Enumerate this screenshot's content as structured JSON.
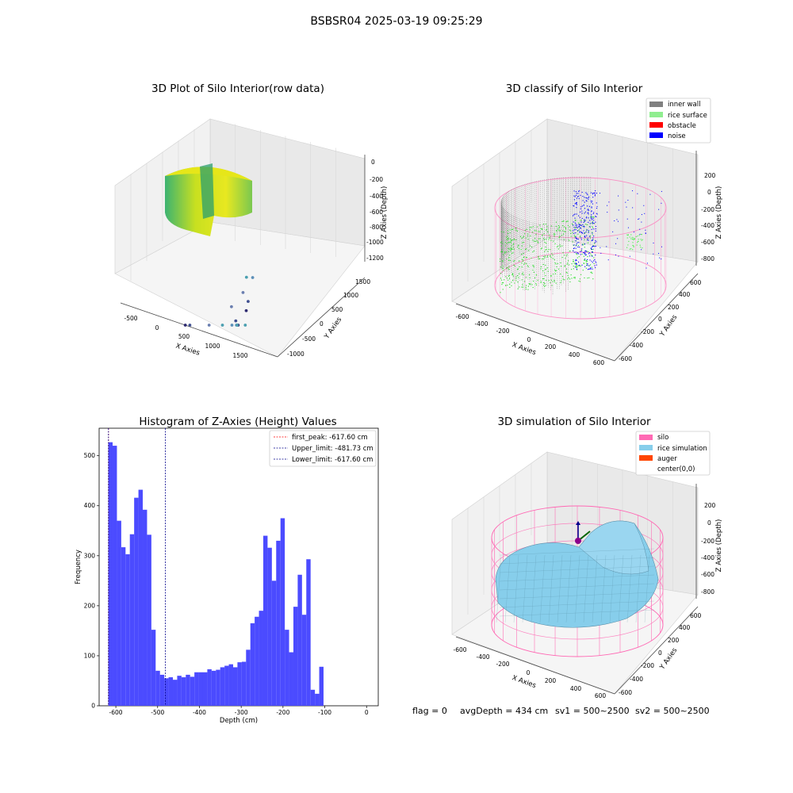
{
  "figure": {
    "suptitle": "BSBSR04 2025-03-19 09:25:29",
    "status": {
      "flag": "flag = 0",
      "avg_depth": "avgDepth = 434 cm",
      "sv1": "sv1 = 500~2500",
      "sv2": "sv2 = 500~2500"
    }
  },
  "colors": {
    "inner_wall": "#808080",
    "rice_surface": "#90ee90",
    "obstacle": "#ff0000",
    "noise": "#0000ff",
    "silo": "#ff69b4",
    "rice_simulation": "#87ceeb",
    "auger": "#ff4500",
    "histogram": "#4b4bff",
    "first_peak_line": "#ff0000",
    "limit_line": "#00008b",
    "pane_gray": "#f2f2f2"
  },
  "chart_data": [
    {
      "type": "scatter",
      "title": "3D Plot of Silo Interior(row data)",
      "xlabel": "X Axies",
      "ylabel": "Y Axies",
      "zlabel": "Z Axies (Depth)",
      "xticks": [
        "-500",
        "0",
        "500",
        "1000",
        "1500"
      ],
      "yticks": [
        "-1000",
        "-500",
        "0",
        "500",
        "1000",
        "1500"
      ],
      "zticks": [
        "0",
        "-200",
        "-400",
        "-600",
        "-800",
        "-1000",
        "-1200"
      ],
      "outlier_points": [
        {
          "x": 1300,
          "y": 600,
          "z": -600
        },
        {
          "x": 1350,
          "y": 700,
          "z": -620
        },
        {
          "x": 1200,
          "y": 650,
          "z": -800
        },
        {
          "x": 1400,
          "y": 500,
          "z": -820
        },
        {
          "x": 1500,
          "y": 300,
          "z": -850
        },
        {
          "x": 1550,
          "y": 200,
          "z": -1000
        },
        {
          "x": 1450,
          "y": 100,
          "z": -1050
        },
        {
          "x": 1150,
          "y": 400,
          "z": -900
        },
        {
          "x": 1300,
          "y": 300,
          "z": -1000
        },
        {
          "x": 1550,
          "y": 0,
          "z": -1150
        },
        {
          "x": 1600,
          "y": -100,
          "z": -1200
        },
        {
          "x": 1500,
          "y": -100,
          "z": -1300
        },
        {
          "x": 1200,
          "y": -300,
          "z": -1250
        },
        {
          "x": 900,
          "y": -400,
          "z": -1300
        },
        {
          "x": 950,
          "y": -600,
          "z": -1350
        },
        {
          "x": 1250,
          "y": 0,
          "z": -1100
        }
      ]
    },
    {
      "type": "scatter",
      "title": "3D classify of Silo Interior",
      "xlabel": "X Axies",
      "ylabel": "Y Axies",
      "zlabel": "Z Axies (Depth)",
      "xticks": [
        "-600",
        "-400",
        "-200",
        "0",
        "200",
        "400",
        "600"
      ],
      "yticks": [
        "-600",
        "-400",
        "-200",
        "0",
        "200",
        "400",
        "600"
      ],
      "zticks": [
        "200",
        "0",
        "-200",
        "-400",
        "-600",
        "-800"
      ],
      "legend": [
        "inner wall",
        "rice surface",
        "obstacle",
        "noise"
      ],
      "legend_loc": "upper right"
    },
    {
      "type": "bar",
      "title": "Histogram of Z-Axies (Height) Values",
      "xlabel": "Depth (cm)",
      "ylabel": "Frequency",
      "xlim": [
        -640,
        28
      ],
      "ylim": [
        0,
        555
      ],
      "xticks": [
        -600,
        -500,
        -400,
        -300,
        -200,
        -100,
        0
      ],
      "yticks": [
        0,
        100,
        200,
        300,
        400,
        500
      ],
      "bin_start": -618,
      "bin_width": 10.3,
      "values": [
        527,
        520,
        370,
        317,
        303,
        343,
        416,
        432,
        392,
        342,
        152,
        70,
        62,
        55,
        57,
        52,
        60,
        57,
        62,
        58,
        67,
        67,
        67,
        73,
        70,
        72,
        77,
        80,
        83,
        77,
        87,
        88,
        112,
        165,
        178,
        190,
        340,
        316,
        250,
        330,
        375,
        152,
        107,
        198,
        262,
        182,
        293,
        32,
        24,
        78
      ],
      "vlines": [
        {
          "label": "first_peak: -617.60 cm",
          "x": -617.6,
          "style": "red-dashed"
        },
        {
          "label": "Upper_limit: -481.73 cm",
          "x": -481.73,
          "style": "navy-dashed"
        },
        {
          "label": "Lower_limit: -617.60 cm",
          "x": -617.6,
          "style": "navy-dashed"
        }
      ],
      "legend_loc": "upper right"
    },
    {
      "type": "area",
      "title": "3D simulation of Silo Interior",
      "xlabel": "X Axies",
      "ylabel": "Y Axies",
      "zlabel": "Z Axies (Depth)",
      "xticks": [
        "-600",
        "-400",
        "-200",
        "0",
        "200",
        "400",
        "600"
      ],
      "yticks": [
        "-600",
        "-400",
        "-200",
        "0",
        "200",
        "400",
        "600"
      ],
      "zticks": [
        "200",
        "0",
        "-200",
        "-400",
        "-600",
        "-800"
      ],
      "legend": [
        "silo",
        "rice simulation",
        "auger",
        "center(0,0)"
      ],
      "legend_loc": "upper right"
    }
  ]
}
